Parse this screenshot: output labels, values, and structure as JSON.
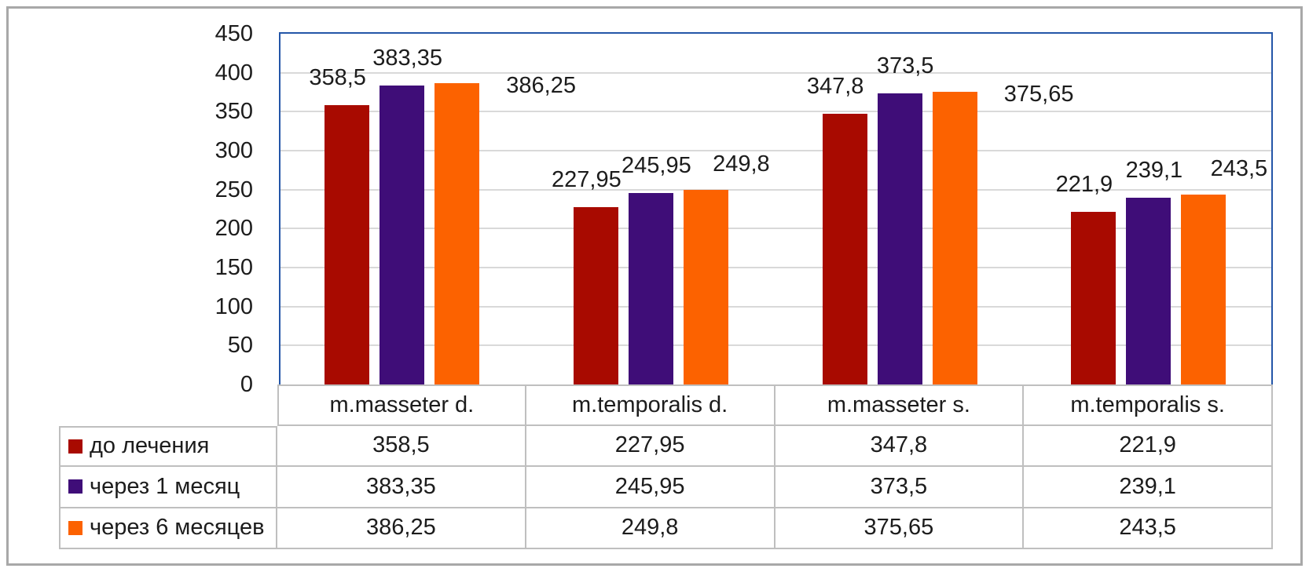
{
  "chart_data": {
    "type": "bar",
    "title": "",
    "categories": [
      "m.masseter d.",
      "m.temporalis d.",
      "m.masseter s.",
      "m.temporalis s."
    ],
    "series": [
      {
        "name": "до лечения",
        "color": "#a80a00",
        "values": [
          358.5,
          227.95,
          347.8,
          221.9
        ]
      },
      {
        "name": "через 1 месяц",
        "color": "#3f0d78",
        "values": [
          383.35,
          245.95,
          373.5,
          239.1
        ]
      },
      {
        "name": "через 6 месяцев",
        "color": "#fc6200",
        "values": [
          386.25,
          249.8,
          375.65,
          243.5
        ]
      }
    ],
    "ylim": [
      0,
      450
    ],
    "ytick_step": 50,
    "yticks": [
      0,
      50,
      100,
      150,
      200,
      250,
      300,
      350,
      400,
      450
    ],
    "xlabel": "",
    "ylabel": "",
    "grid": "horizontal-only",
    "data_labels": "outside-end",
    "data_table_shown": true,
    "legend_position": "data-table-left",
    "decimal_separator": ","
  },
  "colors": {
    "plot_border": "#2456a8",
    "gridline": "#d9d9d9",
    "table_border": "#bfbfbf",
    "figure_border": "#a8a8a8",
    "background": "#ffffff",
    "text": "#1c1c1c"
  }
}
